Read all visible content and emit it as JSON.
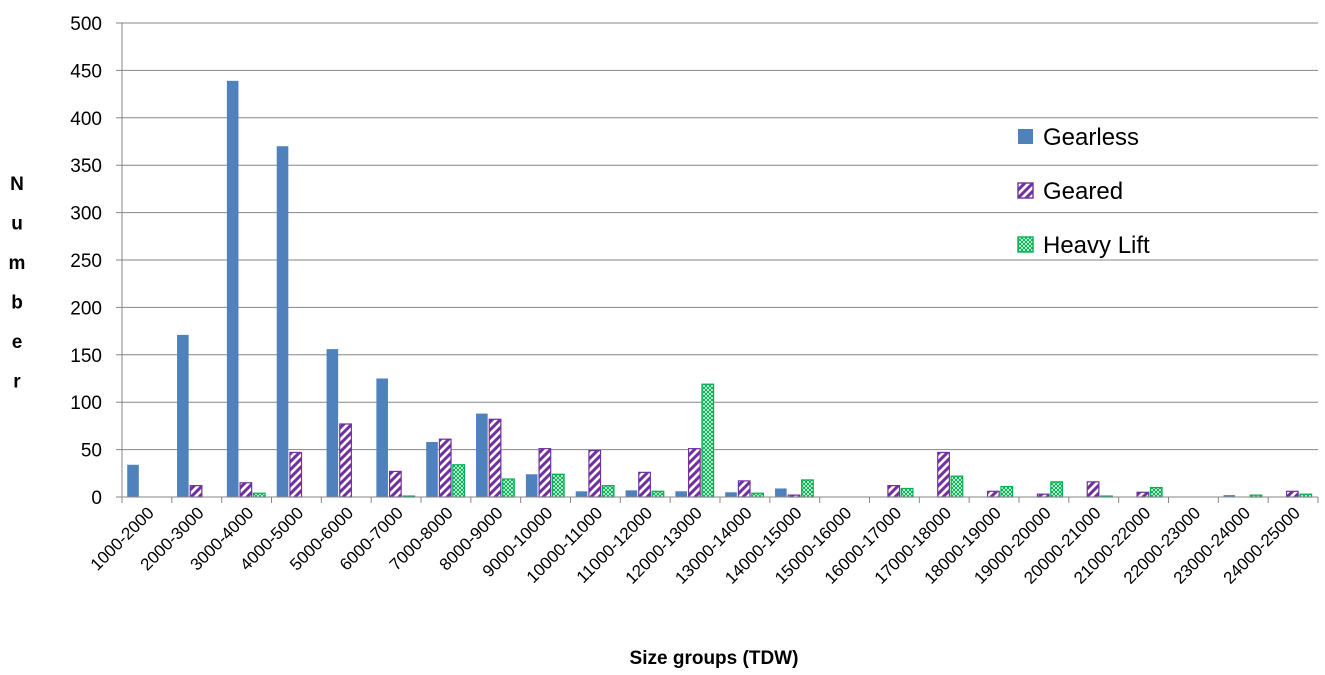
{
  "chart_data": {
    "type": "bar",
    "title": "",
    "xlabel": "Size groups (TDW)",
    "ylabel": "Number",
    "ylim": [
      0,
      500
    ],
    "yticks": [
      0,
      50,
      100,
      150,
      200,
      250,
      300,
      350,
      400,
      450,
      500
    ],
    "grid": true,
    "legend_position": "right",
    "categories": [
      "1000-2000",
      "2000-3000",
      "3000-4000",
      "4000-5000",
      "5000-6000",
      "6000-7000",
      "7000-8000",
      "8000-9000",
      "9000-10000",
      "10000-11000",
      "11000-12000",
      "12000-13000",
      "13000-14000",
      "14000-15000",
      "15000-16000",
      "16000-17000",
      "17000-18000",
      "18000-19000",
      "19000-20000",
      "20000-21000",
      "21000-22000",
      "22000-23000",
      "23000-24000",
      "24000-25000"
    ],
    "series": [
      {
        "name": "Gearless",
        "color": "#4f81bd",
        "pattern": "solid",
        "values": [
          34,
          171,
          439,
          370,
          156,
          125,
          58,
          88,
          24,
          6,
          7,
          6,
          5,
          9,
          0,
          0,
          0,
          0,
          0,
          0,
          0,
          0,
          2,
          0
        ]
      },
      {
        "name": "Geared",
        "color": "#7030a0",
        "pattern": "diagonal-stripes",
        "values": [
          0,
          12,
          15,
          47,
          77,
          27,
          61,
          82,
          51,
          49,
          26,
          51,
          17,
          2,
          0,
          12,
          47,
          6,
          3,
          16,
          5,
          0,
          0,
          6
        ]
      },
      {
        "name": "Heavy Lift",
        "color": "#00b050",
        "pattern": "crosshatch",
        "values": [
          0,
          0,
          4,
          0,
          0,
          1,
          34,
          19,
          24,
          12,
          6,
          119,
          4,
          18,
          0,
          9,
          22,
          11,
          16,
          1,
          10,
          0,
          2,
          3
        ]
      }
    ]
  }
}
